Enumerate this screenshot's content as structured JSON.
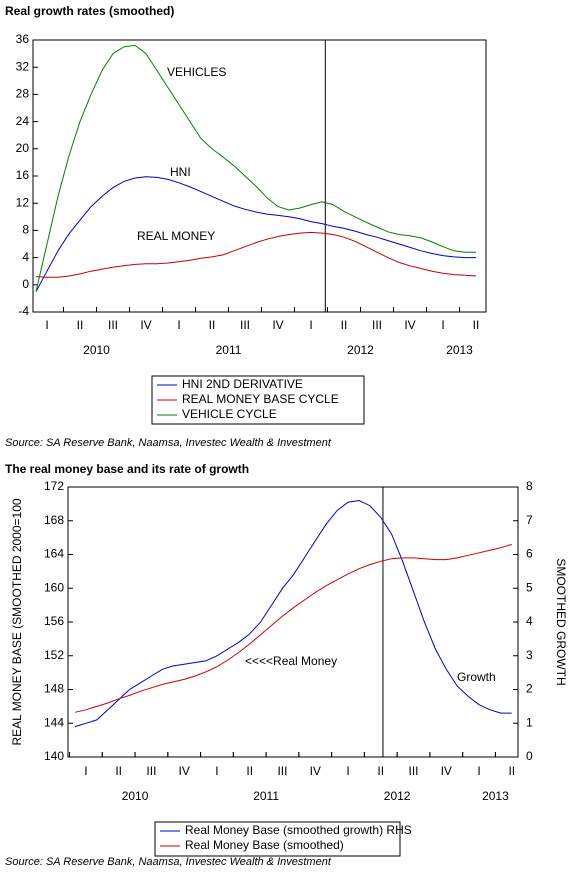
{
  "chart_data": [
    {
      "type": "line",
      "title": "Real growth rates (smoothed)",
      "categories": [
        null,
        "I",
        null,
        null,
        "II",
        null,
        null,
        "III",
        null,
        null,
        "IV",
        null,
        null,
        "I",
        null,
        null,
        "II",
        null,
        null,
        "III",
        null,
        null,
        "IV",
        null,
        null,
        "I",
        null,
        null,
        "II",
        null,
        null,
        "III",
        null,
        null,
        "IV",
        null,
        null,
        "I",
        null,
        null,
        "II",
        null
      ],
      "years": [
        "2010",
        "2011",
        "2012",
        "2013"
      ],
      "series": [
        {
          "name": "HNI 2ND DERIVATIVE",
          "color": "#0000cc",
          "values": [
            -1,
            2,
            5,
            7.5,
            9.5,
            11.5,
            13,
            14.3,
            15.2,
            15.7,
            15.9,
            15.8,
            15.5,
            15,
            14.4,
            13.7,
            13,
            12.3,
            11.6,
            11.1,
            10.7,
            10.4,
            10.2,
            10,
            9.7,
            9.3,
            9,
            8.6,
            8.3,
            7.9,
            7.4,
            7,
            6.5,
            6,
            5.5,
            5,
            4.6,
            4.3,
            4.1,
            4,
            4,
            null
          ]
        },
        {
          "name": "REAL MONEY BASE CYCLE",
          "color": "#cc0000",
          "values": [
            1.2,
            1.1,
            1.1,
            1.3,
            1.6,
            2,
            2.3,
            2.6,
            2.8,
            3,
            3.1,
            3.1,
            3.2,
            3.4,
            3.6,
            3.9,
            4.1,
            4.4,
            5,
            5.6,
            6.2,
            6.7,
            7.1,
            7.4,
            7.6,
            7.7,
            7.6,
            7.4,
            7,
            6.4,
            5.6,
            4.8,
            4,
            3.3,
            2.8,
            2.4,
            2,
            1.7,
            1.5,
            1.4,
            1.3,
            null
          ]
        },
        {
          "name": "VEHICLE CYCLE",
          "color": "#008000",
          "values": [
            -1,
            6,
            13,
            19,
            24,
            28,
            31.5,
            34,
            35,
            35.2,
            34,
            31.5,
            29,
            26.5,
            24,
            21.5,
            20,
            18.8,
            17.5,
            16,
            14.5,
            12.8,
            11.5,
            11,
            11.3,
            11.8,
            12.2,
            11.8,
            10.8,
            10,
            9.2,
            8.5,
            7.8,
            7.4,
            7.2,
            6.9,
            6.3,
            5.6,
            5,
            4.8,
            4.8,
            null
          ]
        }
      ],
      "annotations": [
        "VEHICLES",
        "HNI",
        "REAL MONEY"
      ],
      "ylim": [
        -4,
        36
      ],
      "yticks": [
        -4,
        0,
        4,
        8,
        12,
        16,
        20,
        24,
        28,
        32,
        36
      ],
      "source": "Source: SA Reserve Bank, Naamsa, Investec Wealth & Investment"
    },
    {
      "type": "line",
      "title": "The real money base and its rate of growth",
      "categories": [
        null,
        "I",
        null,
        null,
        "II",
        null,
        null,
        "III",
        null,
        null,
        "IV",
        null,
        null,
        "I",
        null,
        null,
        "II",
        null,
        null,
        "III",
        null,
        null,
        "IV",
        null,
        null,
        "I",
        null,
        null,
        "II",
        null,
        null,
        "III",
        null,
        null,
        "IV",
        null,
        null,
        "I",
        null,
        null,
        "II",
        null
      ],
      "years": [
        "2010",
        "2011",
        "2012",
        "2013"
      ],
      "ylabel": "REAL MONEY BASE (SMOOTHED 2000=100",
      "y2label": "SMOOTHED GROWTH",
      "series": [
        {
          "name": "Real Money Base (smoothed growth) RHS",
          "color": "#0000cc",
          "axis": "y2",
          "values": [
            0.9,
            1,
            1.1,
            1.4,
            1.7,
            2,
            2.2,
            2.4,
            2.6,
            2.7,
            2.75,
            2.8,
            2.85,
            3,
            3.2,
            3.4,
            3.65,
            4,
            4.5,
            5,
            5.4,
            5.9,
            6.4,
            6.9,
            7.3,
            7.55,
            7.6,
            7.45,
            7.1,
            6.6,
            5.8,
            4.9,
            4,
            3.2,
            2.6,
            2.1,
            1.8,
            1.55,
            1.4,
            1.3,
            1.3,
            null
          ]
        },
        {
          "name": "Real Money Base (smoothed)",
          "color": "#cc0000",
          "values": [
            145.3,
            145.6,
            146,
            146.4,
            146.9,
            147.3,
            147.8,
            148.2,
            148.6,
            148.9,
            149.2,
            149.6,
            150.1,
            150.7,
            151.5,
            152.4,
            153.4,
            154.5,
            155.6,
            156.7,
            157.7,
            158.6,
            159.5,
            160.3,
            161,
            161.7,
            162.3,
            162.8,
            163.2,
            163.5,
            163.6,
            163.6,
            163.5,
            163.4,
            163.4,
            163.6,
            163.9,
            164.2,
            164.5,
            164.8,
            165.2,
            null
          ]
        }
      ],
      "annotations": [
        "<<<<Real Money",
        "Growth"
      ],
      "ylim": [
        140,
        172
      ],
      "yticks": [
        140,
        144,
        148,
        152,
        156,
        160,
        164,
        168,
        172
      ],
      "y2lim": [
        0,
        8
      ],
      "y2ticks": [
        0,
        1,
        2,
        3,
        4,
        5,
        6,
        7,
        8
      ],
      "source": "Source: SA Reserve Bank, Naamsa, Investec Wealth & Investment"
    }
  ]
}
